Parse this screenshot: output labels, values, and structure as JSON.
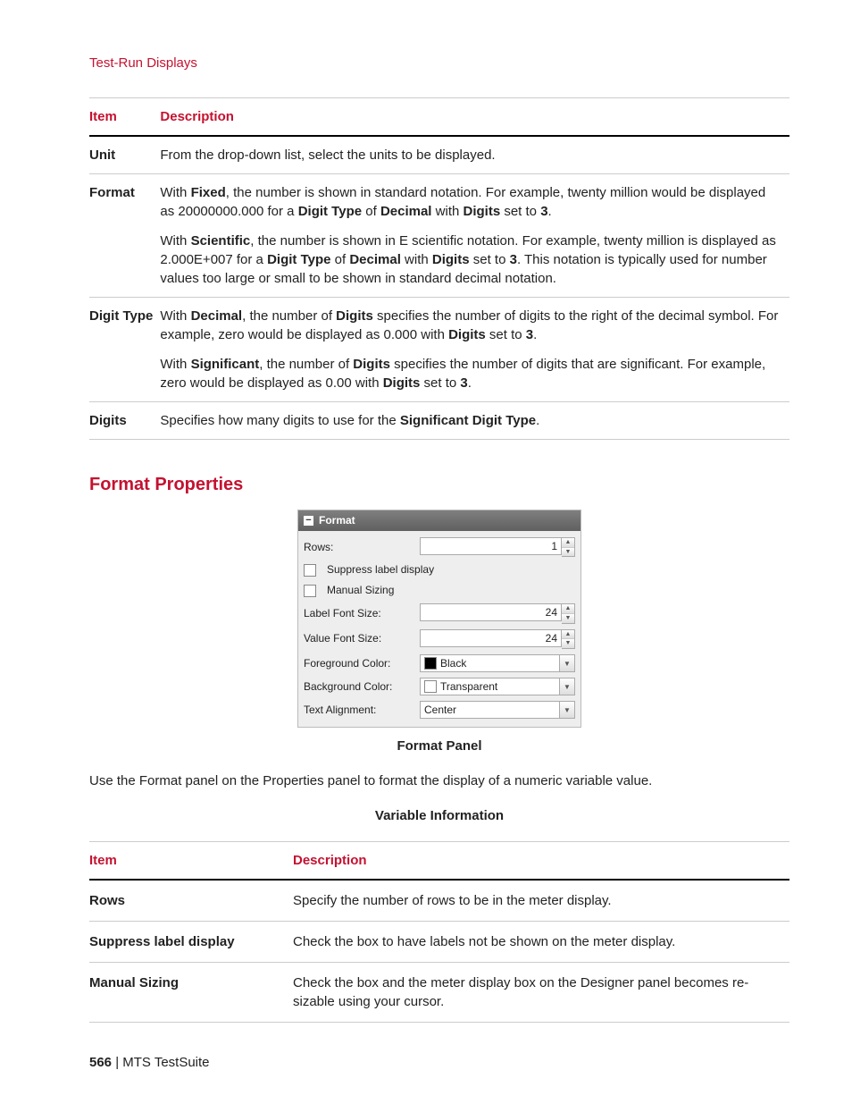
{
  "breadcrumb": "Test-Run Displays",
  "table1": {
    "head_item": "Item",
    "head_desc": "Description",
    "rows": [
      {
        "item": "Unit",
        "desc_html": "From the drop-down list, select the units to be displayed."
      },
      {
        "item": "Format",
        "desc_html": "With <b>Fixed</b>, the number is shown in standard notation. For example, twenty million would be displayed as 20000000.000 for a <b>Digit Type</b> of <b>Decimal</b> with <b>Digits</b> set to <b>3</b>.<div class=\"subpara\">With <b>Scientific</b>, the number is shown in E scientific notation. For example, twenty million is displayed as 2.000E+007 for a <b>Digit Type</b> of <b>Decimal</b> with <b>Digits</b> set to <b>3</b>. This notation is typically used for number values too large or small to be shown in standard decimal notation.</div>"
      },
      {
        "item": "Digit Type",
        "desc_html": "With <b>Decimal</b>, the number of <b>Digits</b> specifies the number of digits to the right of the decimal symbol. For example, zero would be displayed as 0.000 with <b>Digits</b> set to <b>3</b>.<div class=\"subpara\">With <b>Significant</b>, the number of <b>Digits</b> specifies the number of digits that are significant. For example, zero would be displayed as 0.00 with <b>Digits</b> set to <b>3</b>.</div>"
      },
      {
        "item": "Digits",
        "desc_html": "Specifies how many digits to use for the <b>Significant Digit Type</b>."
      }
    ]
  },
  "section_heading": "Format Properties",
  "panel": {
    "title": "Format",
    "rows_label": "Rows:",
    "rows_value": "1",
    "suppress_label": "Suppress label display",
    "manual_label": "Manual Sizing",
    "label_font_label": "Label Font Size:",
    "label_font_value": "24",
    "value_font_label": "Value Font Size:",
    "value_font_value": "24",
    "fg_label": "Foreground Color:",
    "fg_value": "Black",
    "fg_swatch": "#000000",
    "bg_label": "Background Color:",
    "bg_value": "Transparent",
    "bg_swatch": "#ffffff",
    "align_label": "Text Alignment:",
    "align_value": "Center"
  },
  "caption1": "Format Panel",
  "intro_para": "Use the Format panel on the Properties panel to format the display of a numeric variable value.",
  "caption2": "Variable Information",
  "table2": {
    "head_item": "Item",
    "head_desc": "Description",
    "rows": [
      {
        "item": "Rows",
        "desc": "Specify the number of rows to be in the meter display."
      },
      {
        "item": "Suppress label display",
        "desc": "Check the box to have labels not be shown on the meter display."
      },
      {
        "item": "Manual Sizing",
        "desc": "Check the box and the meter display box on the Designer panel becomes re-sizable using your cursor."
      }
    ]
  },
  "footer_page": "566",
  "footer_text": " | MTS TestSuite"
}
